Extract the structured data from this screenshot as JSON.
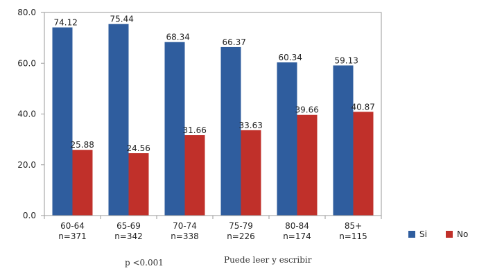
{
  "chart_data": {
    "type": "bar",
    "categories": [
      "60-64",
      "65-69",
      "70-74",
      "75-79",
      "80-84",
      "85+"
    ],
    "category_counts": [
      "n=371",
      "n=342",
      "n=338",
      "n=226",
      "n=174",
      "n=115"
    ],
    "series": [
      {
        "name": "Si",
        "color": "#2f5d9e",
        "values": [
          74.12,
          75.44,
          68.34,
          66.37,
          60.34,
          59.13
        ]
      },
      {
        "name": "No",
        "color": "#c0302a",
        "values": [
          25.88,
          24.56,
          31.66,
          33.63,
          39.66,
          40.87
        ]
      }
    ],
    "yticks": [
      "0.0",
      "20.0",
      "40.0",
      "60.0",
      "80.0"
    ],
    "ylim": [
      0,
      80
    ],
    "xlabel": "Puede leer y escribir",
    "grid": false,
    "legend": "right",
    "annotation": "p <0.001"
  }
}
